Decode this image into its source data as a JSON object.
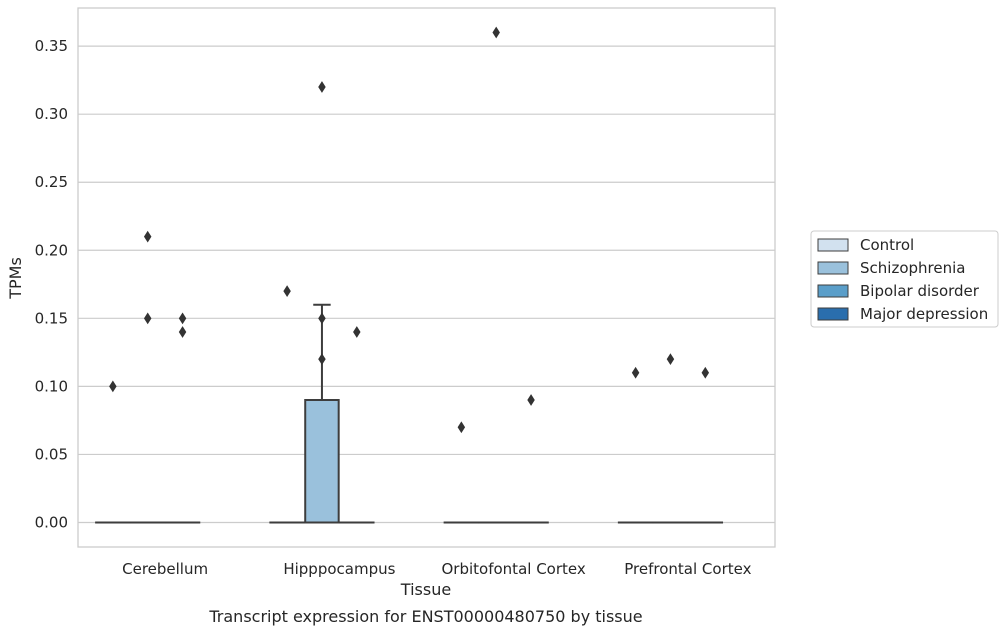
{
  "chart_data": {
    "type": "box",
    "xlabel": "Tissue",
    "ylabel": "TPMs",
    "caption": "Transcript expression for ENST00000480750 by tissue",
    "ylim": [
      -0.018,
      0.378
    ],
    "yticks": [
      0.0,
      0.05,
      0.1,
      0.15,
      0.2,
      0.25,
      0.3,
      0.35
    ],
    "ytick_labels": [
      "0.00",
      "0.05",
      "0.10",
      "0.15",
      "0.20",
      "0.25",
      "0.30",
      "0.35"
    ],
    "grid": "horizontal",
    "legend_position": "right",
    "categories": [
      "Cerebellum",
      "Hipppocampus",
      "Orbitofontal Cortex",
      "Prefrontal Cortex"
    ],
    "series": [
      {
        "name": "Control",
        "color": "#d2e1ef",
        "boxes": [
          {
            "q1": 0.0,
            "median": 0.0,
            "q3": 0.0,
            "whisker_low": 0.0,
            "whisker_high": 0.0,
            "outliers": [
              0.1
            ]
          },
          {
            "q1": 0.0,
            "median": 0.0,
            "q3": 0.0,
            "whisker_low": 0.0,
            "whisker_high": 0.0,
            "outliers": [
              0.17
            ]
          },
          {
            "q1": 0.0,
            "median": 0.0,
            "q3": 0.0,
            "whisker_low": 0.0,
            "whisker_high": 0.0,
            "outliers": [
              0.07
            ]
          },
          {
            "q1": 0.0,
            "median": 0.0,
            "q3": 0.0,
            "whisker_low": 0.0,
            "whisker_high": 0.0,
            "outliers": [
              0.11
            ]
          }
        ]
      },
      {
        "name": "Schizophrenia",
        "color": "#9ac1dc",
        "boxes": [
          {
            "q1": 0.0,
            "median": 0.0,
            "q3": 0.0,
            "whisker_low": 0.0,
            "whisker_high": 0.0,
            "outliers": [
              0.21,
              0.15
            ]
          },
          {
            "q1": 0.0,
            "median": 0.0,
            "q3": 0.09,
            "whisker_low": 0.0,
            "whisker_high": 0.16,
            "outliers": [
              0.32,
              0.15,
              0.12
            ]
          },
          {
            "q1": 0.0,
            "median": 0.0,
            "q3": 0.0,
            "whisker_low": 0.0,
            "whisker_high": 0.0,
            "outliers": [
              0.36
            ]
          },
          {
            "q1": 0.0,
            "median": 0.0,
            "q3": 0.0,
            "whisker_low": 0.0,
            "whisker_high": 0.0,
            "outliers": [
              0.12
            ]
          }
        ]
      },
      {
        "name": "Bipolar disorder",
        "color": "#5a9ec9",
        "boxes": [
          {
            "q1": 0.0,
            "median": 0.0,
            "q3": 0.0,
            "whisker_low": 0.0,
            "whisker_high": 0.0,
            "outliers": [
              0.15,
              0.14
            ]
          },
          {
            "q1": 0.0,
            "median": 0.0,
            "q3": 0.0,
            "whisker_low": 0.0,
            "whisker_high": 0.0,
            "outliers": [
              0.14
            ]
          },
          {
            "q1": 0.0,
            "median": 0.0,
            "q3": 0.0,
            "whisker_low": 0.0,
            "whisker_high": 0.0,
            "outliers": [
              0.09
            ]
          },
          {
            "q1": 0.0,
            "median": 0.0,
            "q3": 0.0,
            "whisker_low": 0.0,
            "whisker_high": 0.0,
            "outliers": [
              0.11
            ]
          }
        ]
      },
      {
        "name": "Major depression",
        "color": "#2a6ead",
        "boxes": [
          null,
          null,
          null,
          null
        ]
      }
    ]
  }
}
